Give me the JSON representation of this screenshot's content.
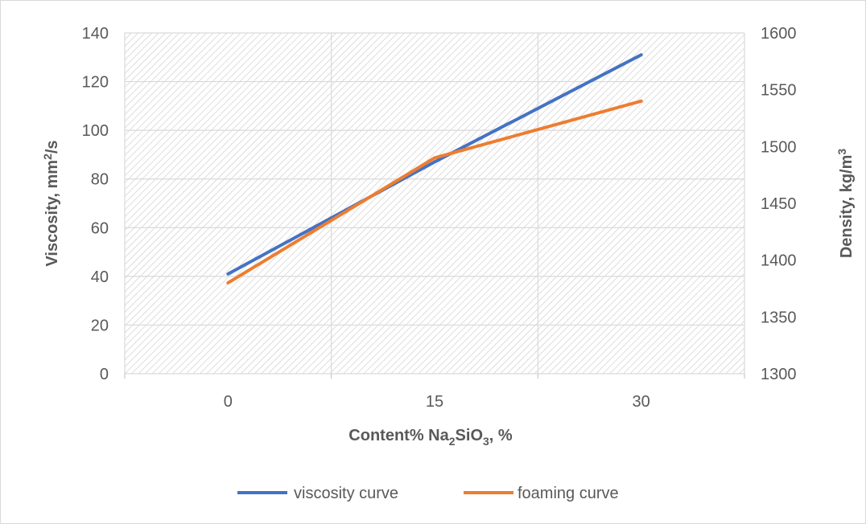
{
  "chart_data": {
    "type": "line",
    "categories": [
      "0",
      "15",
      "30"
    ],
    "series": [
      {
        "name": "viscosity curve",
        "axis": "left",
        "color": "#4472c4",
        "values": [
          41,
          87,
          131
        ]
      },
      {
        "name": "foaming curve",
        "axis": "right",
        "color": "#ed7d31",
        "values": [
          1380,
          1490,
          1540
        ]
      }
    ],
    "x_axis": {
      "label_main": "Content% Na",
      "label_sub1": "2",
      "label_mid": "SiO",
      "label_sub2": "3",
      "label_end": ", %"
    },
    "y_left": {
      "label_main": "Viscosity, mm",
      "label_sup": "2",
      "label_end": "/s",
      "ylim": [
        0,
        140
      ],
      "ticks": [
        "0",
        "20",
        "40",
        "60",
        "80",
        "100",
        "120",
        "140"
      ]
    },
    "y_right": {
      "label_main": "Density, kg/m",
      "label_sup": "3",
      "ylim": [
        1300,
        1600
      ],
      "ticks": [
        "1300",
        "1350",
        "1400",
        "1450",
        "1500",
        "1550",
        "1600"
      ]
    },
    "grid": true,
    "plot_background": "hatched",
    "legend_position": "bottom"
  }
}
